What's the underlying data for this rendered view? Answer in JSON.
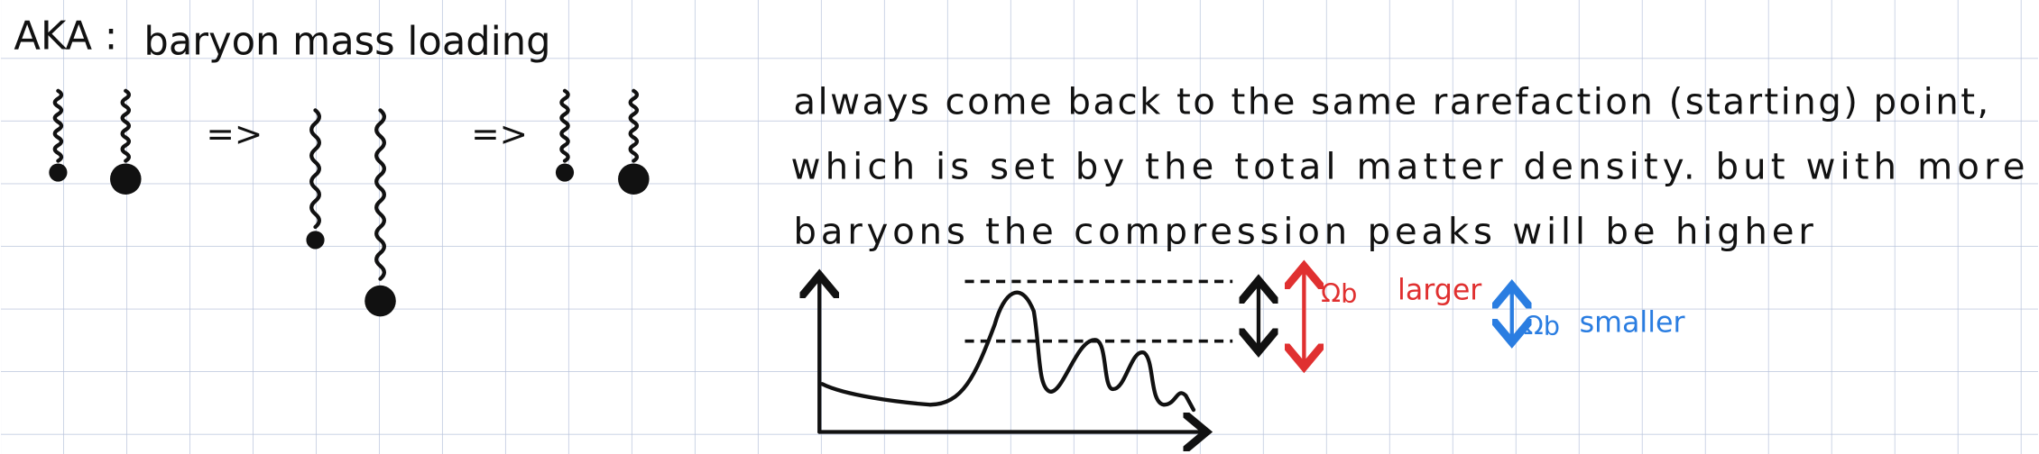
{
  "heading": {
    "prefix": "AKA :",
    "text": "baryon mass loading"
  },
  "arrows": [
    "=>",
    "=>"
  ],
  "paragraph": {
    "lines": [
      "always come back to the same rarefaction (starting) point,",
      "which is set by the total matter density. but with more",
      "baryons the compression peaks will be higher"
    ]
  },
  "plot": {
    "larger": {
      "symbol": "Ωb",
      "label": "larger"
    },
    "smaller": {
      "symbol": "Ωb",
      "label": "smaller"
    }
  }
}
